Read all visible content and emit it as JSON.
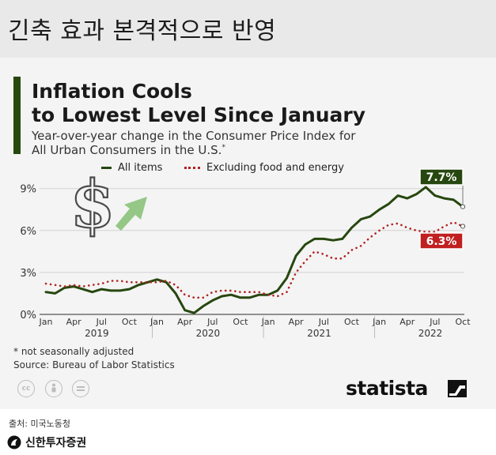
{
  "slide": {
    "title": "긴축 효과 본격적으로 반영",
    "source_note": "출처: 미국노동청",
    "brand": "신한투자증권"
  },
  "chart_data": {
    "type": "line",
    "title_line1": "Inflation Cools",
    "title_line2": "to Lowest Level Since January",
    "subtitle_line1": "Year-over-year change in the Consumer Price Index for",
    "subtitle_line2": "All Urban Consumers in the U.S.",
    "subtitle_mark": "*",
    "xlabel": "",
    "ylabel": "",
    "ylim": [
      0,
      10
    ],
    "y_ticks": [
      {
        "value": 0,
        "label": "0%"
      },
      {
        "value": 3,
        "label": "3%"
      },
      {
        "value": 6,
        "label": "6%"
      },
      {
        "value": 9,
        "label": "9%"
      }
    ],
    "x_tick_labels": [
      "Jan",
      "Apr",
      "Jul",
      "Oct",
      "Jan",
      "Apr",
      "Jul",
      "Oct",
      "Jan",
      "Apr",
      "Jul",
      "Oct",
      "Jan",
      "Apr",
      "Jul",
      "Oct"
    ],
    "year_labels": [
      "2019",
      "2020",
      "2021",
      "2022"
    ],
    "x_start": "2019-01",
    "x_end": "2022-10",
    "grid": true,
    "legend_position": "top-left",
    "series": [
      {
        "name": "All items",
        "color": "#26470f",
        "style": "solid",
        "values": [
          1.6,
          1.5,
          1.9,
          2.0,
          1.8,
          1.6,
          1.8,
          1.7,
          1.7,
          1.8,
          2.1,
          2.3,
          2.5,
          2.3,
          1.5,
          0.3,
          0.1,
          0.6,
          1.0,
          1.3,
          1.4,
          1.2,
          1.2,
          1.4,
          1.4,
          1.7,
          2.6,
          4.2,
          5.0,
          5.4,
          5.4,
          5.3,
          5.4,
          6.2,
          6.8,
          7.0,
          7.5,
          7.9,
          8.5,
          8.3,
          8.6,
          9.1,
          8.5,
          8.3,
          8.2,
          7.7
        ],
        "end_label": "7.7%"
      },
      {
        "name": "Excluding food and energy",
        "color": "#b22222",
        "style": "dotted",
        "values": [
          2.2,
          2.1,
          2.0,
          2.1,
          2.0,
          2.1,
          2.2,
          2.4,
          2.4,
          2.3,
          2.3,
          2.3,
          2.3,
          2.4,
          2.1,
          1.4,
          1.2,
          1.2,
          1.6,
          1.7,
          1.7,
          1.6,
          1.6,
          1.6,
          1.4,
          1.3,
          1.6,
          3.0,
          3.8,
          4.5,
          4.3,
          4.0,
          4.0,
          4.6,
          4.9,
          5.5,
          6.0,
          6.4,
          6.5,
          6.2,
          6.0,
          5.9,
          5.9,
          6.3,
          6.6,
          6.3
        ],
        "end_label": "6.3%"
      }
    ]
  },
  "notes": {
    "footnote": "* not seasonally adjusted",
    "source": "Source: Bureau of Labor Statistics"
  },
  "logo": {
    "text": "statista"
  },
  "icons": {
    "dollar": "dollar-sign-icon",
    "arrow": "up-arrow-icon",
    "license": [
      "cc-icon",
      "attribution-icon",
      "no-derivatives-icon"
    ]
  }
}
